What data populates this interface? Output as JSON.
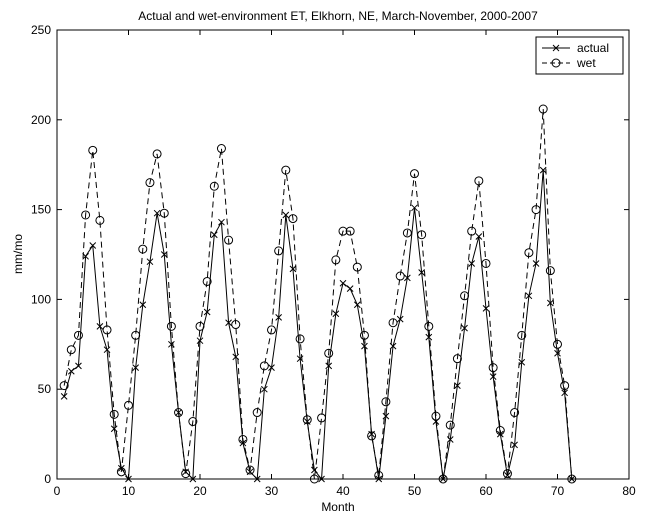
{
  "chart_data": {
    "type": "line",
    "title": "Actual and wet-environment ET, Elkhorn, NE, March-November, 2000-2007",
    "xlabel": "Month",
    "ylabel": "mm/mo",
    "xlim": [
      0,
      80
    ],
    "ylim": [
      0,
      250
    ],
    "xticks": [
      0,
      10,
      20,
      30,
      40,
      50,
      60,
      70,
      80
    ],
    "yticks": [
      0,
      50,
      100,
      150,
      200,
      250
    ],
    "grid": false,
    "legend_position": "top-right",
    "x": [
      1,
      2,
      3,
      4,
      5,
      6,
      7,
      8,
      9,
      10,
      11,
      12,
      13,
      14,
      15,
      16,
      17,
      18,
      19,
      20,
      21,
      22,
      23,
      24,
      25,
      26,
      27,
      28,
      29,
      30,
      31,
      32,
      33,
      34,
      35,
      36,
      37,
      38,
      39,
      40,
      41,
      42,
      43,
      44,
      45,
      46,
      47,
      48,
      49,
      50,
      51,
      52,
      53,
      54,
      55,
      56,
      57,
      58,
      59,
      60,
      61,
      62,
      63,
      64,
      65,
      66,
      67,
      68,
      69,
      70,
      71,
      72
    ],
    "series": [
      {
        "name": "actual",
        "marker": "x",
        "line": "solid",
        "values": [
          46,
          60,
          63,
          124,
          130,
          85,
          72,
          28,
          6,
          0,
          62,
          97,
          121,
          148,
          125,
          75,
          37,
          4,
          0,
          77,
          93,
          136,
          143,
          87,
          68,
          20,
          4,
          0,
          50,
          62,
          90,
          147,
          117,
          67,
          32,
          5,
          0,
          63,
          92,
          109,
          106,
          97,
          74,
          25,
          0,
          35,
          74,
          89,
          112,
          151,
          115,
          79,
          32,
          0,
          22,
          52,
          84,
          120,
          135,
          95,
          57,
          25,
          2,
          19,
          65,
          102,
          120,
          172,
          98,
          70,
          48,
          0
        ]
      },
      {
        "name": "wet",
        "marker": "o",
        "line": "dashed",
        "values": [
          52,
          72,
          80,
          147,
          183,
          144,
          83,
          36,
          4,
          41,
          80,
          128,
          165,
          181,
          148,
          85,
          37,
          3,
          32,
          85,
          110,
          163,
          184,
          133,
          86,
          22,
          5,
          37,
          63,
          83,
          127,
          172,
          145,
          78,
          33,
          0,
          34,
          70,
          122,
          138,
          138,
          118,
          80,
          24,
          2,
          43,
          87,
          113,
          137,
          170,
          136,
          85,
          35,
          0,
          30,
          67,
          102,
          138,
          166,
          120,
          62,
          27,
          3,
          37,
          80,
          126,
          150,
          206,
          116,
          75,
          52,
          0
        ]
      }
    ]
  }
}
